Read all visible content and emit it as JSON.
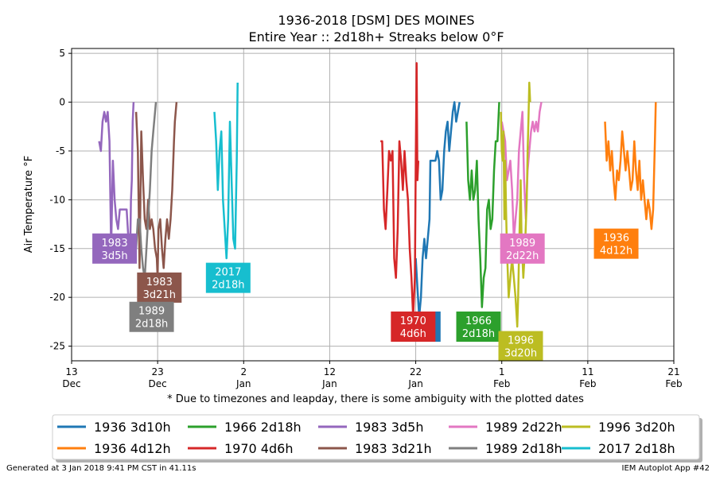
{
  "chart_data": {
    "type": "line",
    "title": "1936-2018 [DSM] DES MOINES",
    "subtitle": "Entire Year :: 2d18h+ Streaks below 0°F",
    "ylabel": "Air Temperature °F",
    "xlabel": "* Due to timezones and leapday, there is some ambiguity with the plotted dates",
    "ylim": [
      -26.5,
      5.5
    ],
    "yticks": [
      5,
      0,
      -5,
      -10,
      -15,
      -20,
      -25
    ],
    "xlim": [
      0,
      70
    ],
    "xticks": [
      {
        "day": 0,
        "label": "13\nDec"
      },
      {
        "day": 10,
        "label": "23\nDec"
      },
      {
        "day": 20,
        "label": "2\nJan"
      },
      {
        "day": 30,
        "label": "12\nJan"
      },
      {
        "day": 40,
        "label": "22\nJan"
      },
      {
        "day": 50,
        "label": "1\nFeb"
      },
      {
        "day": 60,
        "label": "11\nFeb"
      },
      {
        "day": 70,
        "label": "21\nFeb"
      }
    ],
    "grid": true,
    "legend_position": "bottom",
    "series": [
      {
        "name": "1936 3d10h",
        "color": "#1f77b4",
        "label": "1936\n3d10h",
        "points": [
          [
            40.0,
            -16
          ],
          [
            40.2,
            -19
          ],
          [
            40.4,
            -22
          ],
          [
            40.6,
            -20
          ],
          [
            40.8,
            -16
          ],
          [
            41.0,
            -14
          ],
          [
            41.2,
            -16
          ],
          [
            41.4,
            -14
          ],
          [
            41.6,
            -12
          ],
          [
            41.7,
            -6
          ],
          [
            42.0,
            -6
          ],
          [
            42.3,
            -6
          ],
          [
            42.5,
            -5
          ],
          [
            42.7,
            -6
          ],
          [
            42.9,
            -10
          ],
          [
            43.1,
            -9
          ],
          [
            43.3,
            -5
          ],
          [
            43.5,
            -3
          ],
          [
            43.7,
            -2
          ],
          [
            43.9,
            -5
          ],
          [
            44.1,
            -3
          ],
          [
            44.3,
            -1
          ],
          [
            44.5,
            0
          ],
          [
            44.7,
            -2
          ],
          [
            44.9,
            -1
          ],
          [
            45.1,
            0
          ]
        ],
        "label_at": [
          40.3,
          -23.0
        ]
      },
      {
        "name": "1936 4d12h",
        "color": "#ff7f0e",
        "label": "1936\n4d12h",
        "points": [
          [
            62.0,
            -2
          ],
          [
            62.2,
            -6
          ],
          [
            62.4,
            -4
          ],
          [
            62.6,
            -7
          ],
          [
            62.8,
            -5
          ],
          [
            63.0,
            -8
          ],
          [
            63.2,
            -10
          ],
          [
            63.4,
            -7
          ],
          [
            63.6,
            -8
          ],
          [
            63.8,
            -6
          ],
          [
            64.0,
            -3
          ],
          [
            64.2,
            -5
          ],
          [
            64.4,
            -7
          ],
          [
            64.6,
            -5
          ],
          [
            64.8,
            -7
          ],
          [
            65.0,
            -9
          ],
          [
            65.2,
            -8
          ],
          [
            65.4,
            -4
          ],
          [
            65.6,
            -7
          ],
          [
            65.8,
            -9
          ],
          [
            66.0,
            -6
          ],
          [
            66.2,
            -10
          ],
          [
            66.4,
            -8
          ],
          [
            66.6,
            -10
          ],
          [
            66.8,
            -12
          ],
          [
            67.0,
            -10
          ],
          [
            67.2,
            -11
          ],
          [
            67.4,
            -13
          ],
          [
            67.6,
            -11
          ],
          [
            67.8,
            -4
          ],
          [
            67.9,
            0
          ]
        ],
        "label_at": [
          63.3,
          -14.5
        ]
      },
      {
        "name": "1966 2d18h",
        "color": "#2ca02c",
        "label": "1966\n2d18h",
        "points": [
          [
            45.9,
            -2
          ],
          [
            46.1,
            -8
          ],
          [
            46.3,
            -10
          ],
          [
            46.5,
            -7
          ],
          [
            46.7,
            -10
          ],
          [
            46.9,
            -9
          ],
          [
            47.1,
            -6
          ],
          [
            47.3,
            -12
          ],
          [
            47.5,
            -16
          ],
          [
            47.7,
            -21
          ],
          [
            47.9,
            -18
          ],
          [
            48.1,
            -17
          ],
          [
            48.3,
            -11
          ],
          [
            48.5,
            -10
          ],
          [
            48.7,
            -13
          ],
          [
            48.9,
            -12
          ],
          [
            49.1,
            -7
          ],
          [
            49.3,
            -4
          ],
          [
            49.5,
            -4
          ],
          [
            49.7,
            0
          ]
        ],
        "label_at": [
          47.3,
          -23.0
        ]
      },
      {
        "name": "1970 4d6h",
        "color": "#d62728",
        "label": "1970\n4d6h",
        "points": [
          [
            35.9,
            -4
          ],
          [
            36.1,
            -4
          ],
          [
            36.3,
            -11
          ],
          [
            36.5,
            -13
          ],
          [
            36.7,
            -9
          ],
          [
            36.9,
            -5
          ],
          [
            37.1,
            -6
          ],
          [
            37.3,
            -5
          ],
          [
            37.5,
            -16
          ],
          [
            37.7,
            -18
          ],
          [
            37.9,
            -13
          ],
          [
            38.1,
            -4
          ],
          [
            38.3,
            -6
          ],
          [
            38.5,
            -9
          ],
          [
            38.7,
            -5
          ],
          [
            38.9,
            -8
          ],
          [
            39.1,
            -10
          ],
          [
            39.3,
            -15
          ],
          [
            39.5,
            -18
          ],
          [
            39.7,
            -22
          ],
          [
            39.9,
            -18
          ],
          [
            40.0,
            -6
          ],
          [
            40.1,
            4
          ],
          [
            40.2,
            -8
          ],
          [
            40.3,
            -6
          ]
        ],
        "label_at": [
          39.7,
          -23.0
        ]
      },
      {
        "name": "1983 3d5h",
        "color": "#9467bd",
        "label": "1983\n3d5h",
        "points": [
          [
            3.2,
            -4
          ],
          [
            3.4,
            -5
          ],
          [
            3.6,
            -2
          ],
          [
            3.8,
            -1
          ],
          [
            4.0,
            -2
          ],
          [
            4.2,
            -1
          ],
          [
            4.4,
            -4
          ],
          [
            4.6,
            -15
          ],
          [
            4.8,
            -6
          ],
          [
            5.0,
            -10
          ],
          [
            5.2,
            -12
          ],
          [
            5.4,
            -13
          ],
          [
            5.6,
            -11
          ],
          [
            5.8,
            -11
          ],
          [
            6.0,
            -11
          ],
          [
            6.2,
            -11
          ],
          [
            6.4,
            -11
          ],
          [
            6.6,
            -14
          ],
          [
            6.8,
            -16
          ],
          [
            6.9,
            -10
          ],
          [
            7.0,
            -8
          ],
          [
            7.1,
            -2
          ],
          [
            7.2,
            0
          ]
        ],
        "label_at": [
          5.0,
          -15.0
        ]
      },
      {
        "name": "1983 3d21h",
        "color": "#8c564b",
        "label": "1983\n3d21h",
        "points": [
          [
            7.5,
            -1
          ],
          [
            7.7,
            -5
          ],
          [
            7.9,
            -17
          ],
          [
            8.1,
            -3
          ],
          [
            8.3,
            -8
          ],
          [
            8.5,
            -12
          ],
          [
            8.7,
            -13
          ],
          [
            8.9,
            -10
          ],
          [
            9.1,
            -13
          ],
          [
            9.3,
            -12
          ],
          [
            9.5,
            -13
          ],
          [
            9.7,
            -15
          ],
          [
            9.9,
            -16
          ],
          [
            10.0,
            -18
          ],
          [
            10.1,
            -13
          ],
          [
            10.3,
            -12
          ],
          [
            10.5,
            -15
          ],
          [
            10.7,
            -17
          ],
          [
            10.9,
            -14
          ],
          [
            11.1,
            -12
          ],
          [
            11.3,
            -14
          ],
          [
            11.5,
            -12
          ],
          [
            11.7,
            -9
          ],
          [
            11.9,
            -4
          ],
          [
            12.0,
            -2
          ],
          [
            12.2,
            0
          ]
        ],
        "label_at": [
          10.2,
          -19.0
        ]
      },
      {
        "name": "1989 2d22h",
        "color": "#e377c2",
        "label": "1989\n2d22h",
        "points": [
          [
            50.0,
            -2
          ],
          [
            50.2,
            -3
          ],
          [
            50.4,
            -4
          ],
          [
            50.6,
            -8
          ],
          [
            50.8,
            -7
          ],
          [
            51.0,
            -6
          ],
          [
            51.2,
            -9
          ],
          [
            51.4,
            -14
          ],
          [
            51.6,
            -12
          ],
          [
            51.8,
            -10
          ],
          [
            52.0,
            -5
          ],
          [
            52.2,
            -3
          ],
          [
            52.4,
            -1
          ],
          [
            52.6,
            -8
          ],
          [
            52.8,
            -12
          ],
          [
            53.0,
            -7
          ],
          [
            53.2,
            -5
          ],
          [
            53.4,
            -3
          ],
          [
            53.6,
            -2
          ],
          [
            53.8,
            -3
          ],
          [
            54.0,
            -2
          ],
          [
            54.2,
            -3
          ],
          [
            54.4,
            -1
          ],
          [
            54.6,
            0
          ]
        ],
        "label_at": [
          52.4,
          -15.0
        ]
      },
      {
        "name": "1989 2d18h",
        "color": "#7f7f7f",
        "label": "1989\n2d18h",
        "points": [
          [
            7.3,
            -14
          ],
          [
            7.5,
            -15
          ],
          [
            7.7,
            -12
          ],
          [
            7.9,
            -12
          ],
          [
            8.1,
            -15
          ],
          [
            8.3,
            -17
          ],
          [
            8.5,
            -18
          ],
          [
            8.7,
            -15
          ],
          [
            8.9,
            -12
          ],
          [
            9.1,
            -9
          ],
          [
            9.3,
            -5
          ],
          [
            9.5,
            -3
          ],
          [
            9.7,
            -1
          ],
          [
            9.8,
            0
          ]
        ],
        "label_at": [
          9.3,
          -22.0
        ]
      },
      {
        "name": "1996 3d20h",
        "color": "#bcbd22",
        "label": "1996\n3d20h",
        "points": [
          [
            49.9,
            -1
          ],
          [
            50.0,
            -5
          ],
          [
            50.1,
            -6
          ],
          [
            50.2,
            -3
          ],
          [
            50.3,
            -12
          ],
          [
            50.4,
            -6
          ],
          [
            50.5,
            -11
          ],
          [
            50.6,
            -15
          ],
          [
            50.8,
            -20
          ],
          [
            51.0,
            -18
          ],
          [
            51.2,
            -16
          ],
          [
            51.4,
            -18
          ],
          [
            51.6,
            -20
          ],
          [
            51.8,
            -23
          ],
          [
            51.9,
            -20
          ],
          [
            52.0,
            -16
          ],
          [
            52.2,
            -8
          ],
          [
            52.3,
            -14
          ],
          [
            52.5,
            -18
          ],
          [
            52.7,
            -15
          ],
          [
            52.9,
            -10
          ],
          [
            53.0,
            -5
          ],
          [
            53.1,
            -2
          ],
          [
            53.2,
            2
          ],
          [
            53.3,
            0
          ]
        ],
        "label_at": [
          52.2,
          -25.0
        ]
      },
      {
        "name": "2017 2d18h",
        "color": "#17becf",
        "label": "2017\n2d18h",
        "points": [
          [
            16.6,
            -1
          ],
          [
            16.8,
            -4
          ],
          [
            17.0,
            -9
          ],
          [
            17.2,
            -5
          ],
          [
            17.4,
            -3
          ],
          [
            17.6,
            -10
          ],
          [
            17.8,
            -13
          ],
          [
            18.0,
            -16
          ],
          [
            18.2,
            -12
          ],
          [
            18.4,
            -2
          ],
          [
            18.6,
            -8
          ],
          [
            18.8,
            -14
          ],
          [
            19.0,
            -15
          ],
          [
            19.2,
            -6
          ],
          [
            19.3,
            2
          ]
        ],
        "label_at": [
          18.2,
          -18.0
        ]
      }
    ]
  },
  "footer": {
    "left": "Generated at 3 Jan 2018 9:41 PM CST in 41.11s",
    "right": "IEM Autoplot App #42"
  }
}
